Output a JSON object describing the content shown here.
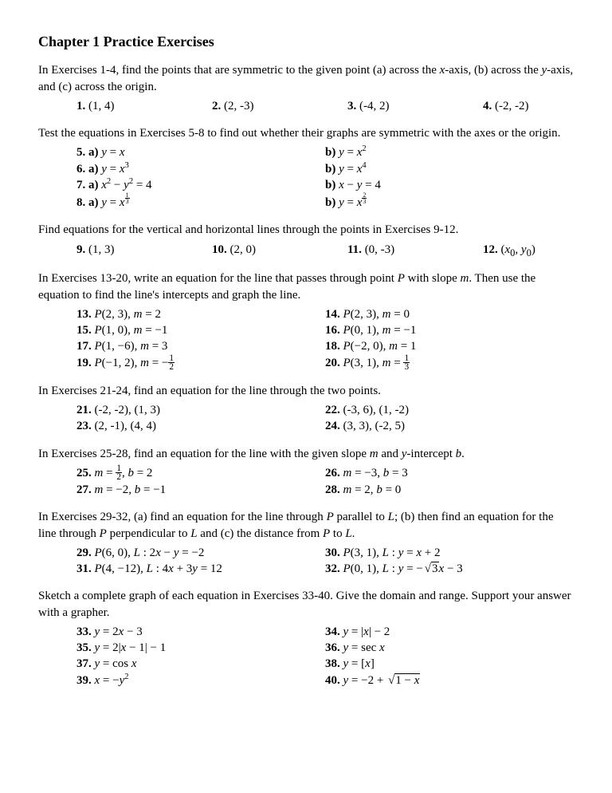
{
  "title": "Chapter 1 Practice Exercises",
  "p1_intro": "In Exercises 1-4, find the points that are symmetric to the given point (a) across the ",
  "p1_x": "x",
  "p1_mid": "-axis, (b) across the ",
  "p1_y": "y",
  "p1_end": "-axis, and (c) across the origin.",
  "ex1": "1.",
  "ex1v": " (1, 4)",
  "ex2": "2.",
  "ex2v": " (2, -3)",
  "ex3": "3.",
  "ex3v": " (-4, 2)",
  "ex4": "4.",
  "ex4v": " (-2, -2)",
  "p2": "Test the equations in Exercises 5-8 to find out whether their graphs are symmetric with the axes or the origin.",
  "ex5a": "5. a)",
  "ex5b": "b)",
  "ex6a": "6. a)",
  "ex6b": "b)",
  "ex7a": "7. a)",
  "ex7b": "b)",
  "ex8a": "8. a)",
  "ex8b": "b)",
  "p3": "Find equations for the vertical and horizontal lines through the points in Exercises 9-12.",
  "ex9": "9.",
  "ex9v": " (1, 3)",
  "ex10": "10.",
  "ex10v": " (2, 0)",
  "ex11": "11.",
  "ex11v": " (0, -3)",
  "ex12": "12.",
  "p4a": "In Exercises 13-20, write an equation for the line that passes through point ",
  "p4b": " with slope ",
  "p4c": ". Then use the equation to find the line's intercepts and graph the line.",
  "ex13": "13.",
  "ex14": "14.",
  "ex15": "15.",
  "ex16": "16.",
  "ex17": "17.",
  "ex18": "18.",
  "ex19": "19.",
  "ex20": "20.",
  "p5": "In Exercises 21-24, find an equation for the line through the two points.",
  "ex21": "21.",
  "ex21v": " (-2, -2), (1, 3)",
  "ex22": "22.",
  "ex22v": " (-3, 6), (1, -2)",
  "ex23": "23.",
  "ex23v": " (2, -1), (4, 4)",
  "ex24": "24.",
  "ex24v": " (3, 3), (-2, 5)",
  "p6a": "In Exercises 25-28, find an equation for the line with the given slope ",
  "p6b": " and ",
  "p6c": "-intercept ",
  "p6d": ".",
  "ex25": "25.",
  "ex26": "26.",
  "ex27": "27.",
  "ex28": "28.",
  "p7a": "In Exercises 29-32, (a) find an equation for the line through ",
  "p7b": " parallel to ",
  "p7c": "; (b) then find an equation for the line through ",
  "p7d": " perpendicular to ",
  "p7e": " and (c) the distance from ",
  "p7f": " to ",
  "p7g": ".",
  "ex29": "29.",
  "ex30": "30.",
  "ex31": "31.",
  "ex32": "32.",
  "p8": "Sketch a complete graph of each equation in Exercises 33-40. Give the domain and range. Support your answer with a grapher.",
  "ex33": "33.",
  "ex34": "34.",
  "ex35": "35.",
  "ex36": "36.",
  "ex37": "37.",
  "ex38": "38.",
  "ex39": "39.",
  "ex40": "40."
}
